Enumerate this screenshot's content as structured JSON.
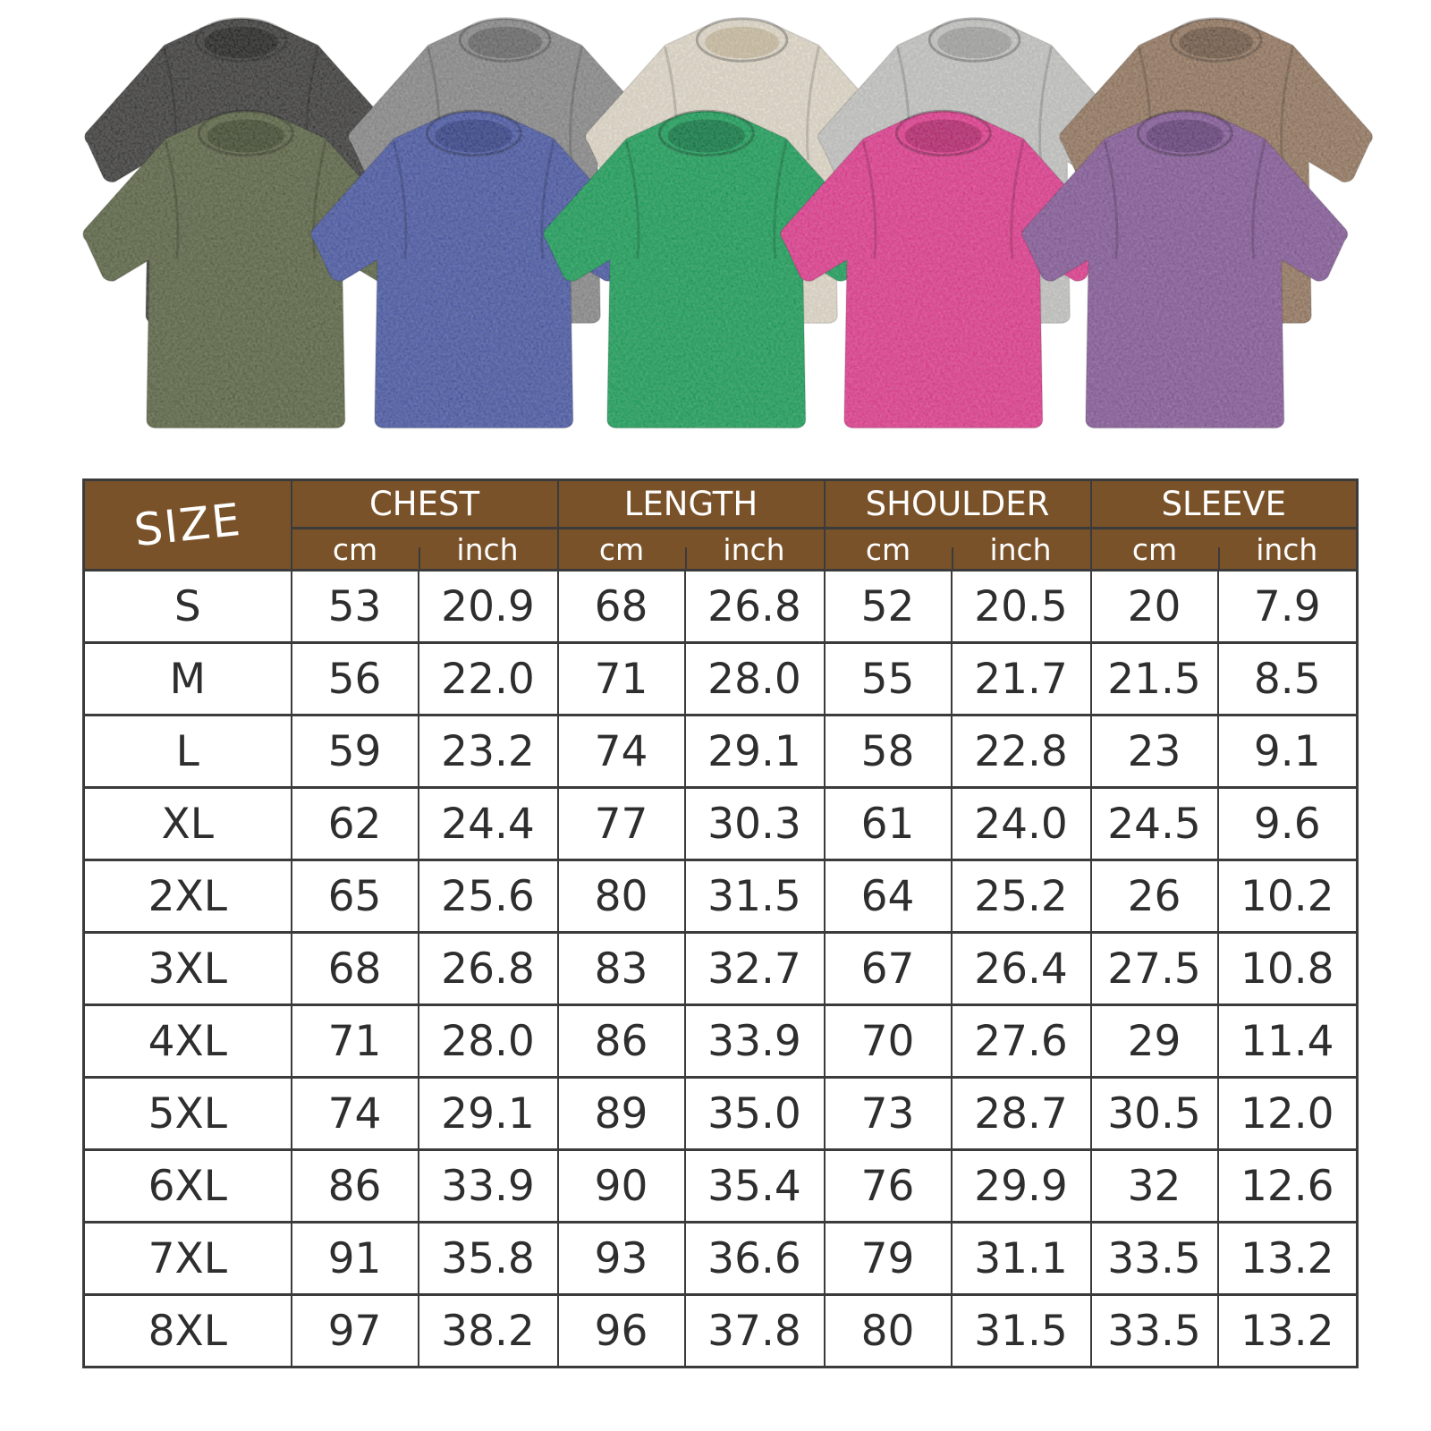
{
  "shirts": {
    "back_row": [
      {
        "name": "washed-black",
        "color": "#3a3938",
        "collar": "#1f1f1e"
      },
      {
        "name": "washed-gray",
        "color": "#8e8e8e",
        "collar": "#6a6a6a"
      },
      {
        "name": "washed-beige",
        "color": "#eae2d1",
        "collar": "#d2c4a8"
      },
      {
        "name": "washed-light-gray",
        "color": "#cbcbc9",
        "collar": "#a8a8a6"
      },
      {
        "name": "washed-brown",
        "color": "#96755a",
        "collar": "#6e533e"
      }
    ],
    "front_row": [
      {
        "name": "washed-army-green",
        "color": "#5e6946",
        "collar": "#424c30"
      },
      {
        "name": "washed-blue",
        "color": "#4c5cae",
        "collar": "#34448e"
      },
      {
        "name": "washed-green",
        "color": "#19a45a",
        "collar": "#0c7c42"
      },
      {
        "name": "washed-rose",
        "color": "#ea3a92",
        "collar": "#bd2470"
      },
      {
        "name": "washed-purple",
        "color": "#8c5ea1",
        "collar": "#6a427f"
      }
    ]
  },
  "size_table": {
    "header": {
      "size_label": "SIZE",
      "groups": [
        "CHEST",
        "LENGTH",
        "SHOULDER",
        "SLEEVE"
      ],
      "unit_cm": "cm",
      "unit_inch": "inch"
    },
    "rows": [
      [
        "S",
        "53",
        "20.9",
        "68",
        "26.8",
        "52",
        "20.5",
        "20",
        "7.9"
      ],
      [
        "M",
        "56",
        "22.0",
        "71",
        "28.0",
        "55",
        "21.7",
        "21.5",
        "8.5"
      ],
      [
        "L",
        "59",
        "23.2",
        "74",
        "29.1",
        "58",
        "22.8",
        "23",
        "9.1"
      ],
      [
        "XL",
        "62",
        "24.4",
        "77",
        "30.3",
        "61",
        "24.0",
        "24.5",
        "9.6"
      ],
      [
        "2XL",
        "65",
        "25.6",
        "80",
        "31.5",
        "64",
        "25.2",
        "26",
        "10.2"
      ],
      [
        "3XL",
        "68",
        "26.8",
        "83",
        "32.7",
        "67",
        "26.4",
        "27.5",
        "10.8"
      ],
      [
        "4XL",
        "71",
        "28.0",
        "86",
        "33.9",
        "70",
        "27.6",
        "29",
        "11.4"
      ],
      [
        "5XL",
        "74",
        "29.1",
        "89",
        "35.0",
        "73",
        "28.7",
        "30.5",
        "12.0"
      ],
      [
        "6XL",
        "86",
        "33.9",
        "90",
        "35.4",
        "76",
        "29.9",
        "32",
        "12.6"
      ],
      [
        "7XL",
        "91",
        "35.8",
        "93",
        "36.6",
        "79",
        "31.1",
        "33.5",
        "13.2"
      ],
      [
        "8XL",
        "97",
        "38.2",
        "96",
        "37.8",
        "80",
        "31.5",
        "33.5",
        "13.2"
      ]
    ]
  },
  "colors": {
    "header_bg": "#7a5229",
    "header_text": "#ffffff",
    "grid_line": "#3b3b3b",
    "body_text": "#2e2e2e"
  }
}
